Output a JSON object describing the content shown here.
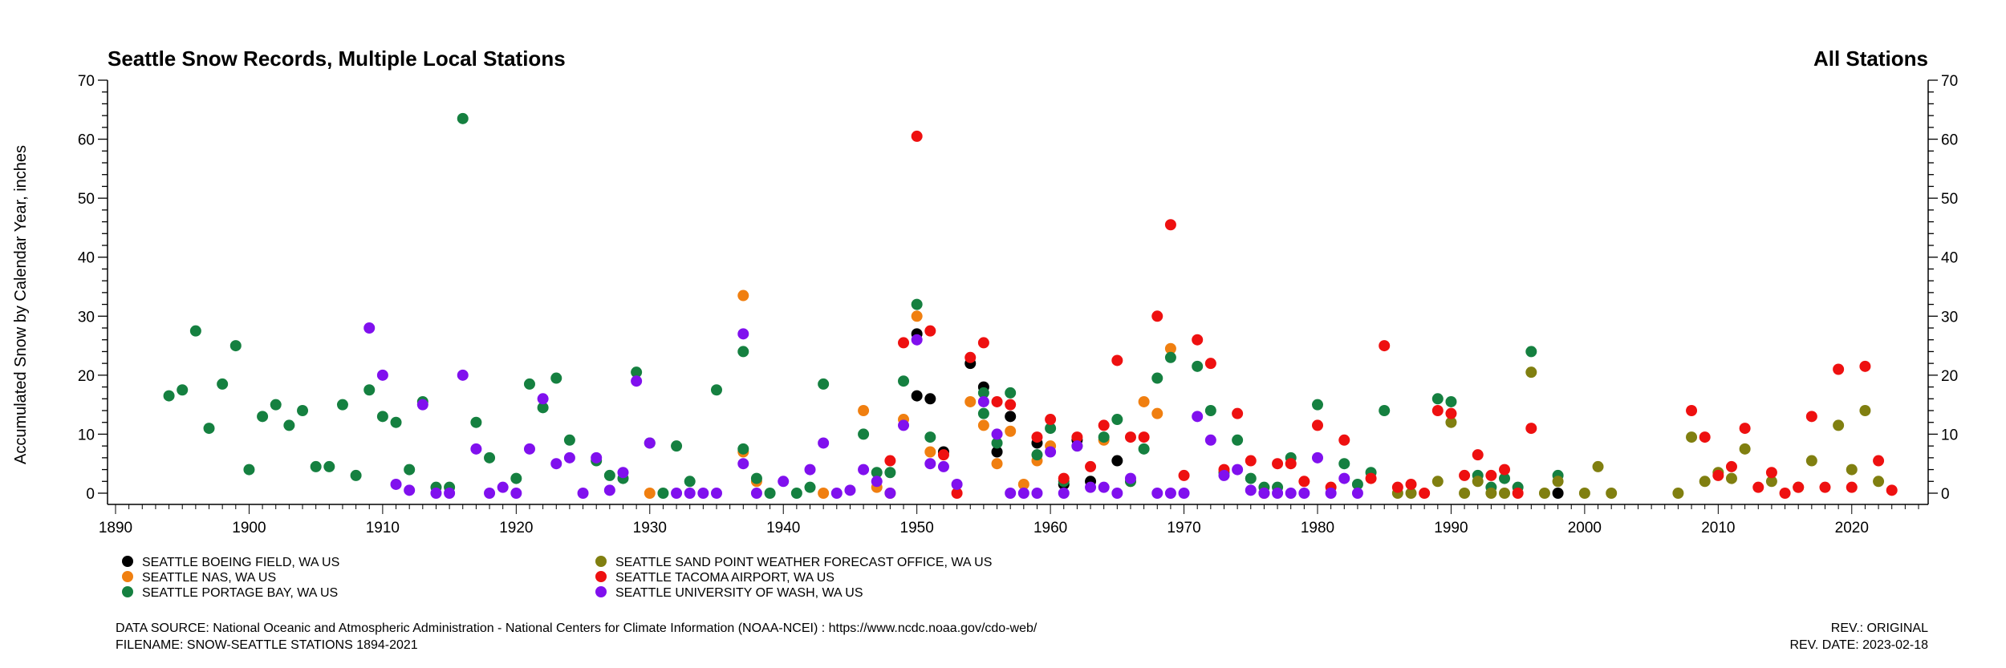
{
  "chart_data": {
    "type": "scatter",
    "title": "Seattle Snow Records, Multiple Local Stations",
    "subtitle": "All Stations",
    "ylabel": "Accumulated Snow by Calendar Year, inches",
    "xlabel": "",
    "xlim": [
      1890,
      2025
    ],
    "ylim": [
      0,
      70
    ],
    "x_ticks": [
      "1890",
      "1900",
      "1910",
      "1920",
      "1930",
      "1940",
      "1950",
      "1960",
      "1970",
      "1980",
      "1990",
      "2000",
      "2010",
      "2020"
    ],
    "y_ticks": [
      "0",
      "10",
      "20",
      "30",
      "40",
      "50",
      "60",
      "70"
    ],
    "grid": false,
    "legend_position": "bottom-left",
    "series": [
      {
        "name": "SEATTLE BOEING FIELD, WA US",
        "color": "#000000",
        "points": [
          [
            1950,
            27
          ],
          [
            1950,
            16.5
          ],
          [
            1951,
            16
          ],
          [
            1952,
            7
          ],
          [
            1954,
            22
          ],
          [
            1955,
            18
          ],
          [
            1956,
            7
          ],
          [
            1957,
            13
          ],
          [
            1959,
            8.5
          ],
          [
            1961,
            1.5
          ],
          [
            1962,
            9
          ],
          [
            1963,
            2
          ],
          [
            1965,
            5.5
          ],
          [
            1998,
            0
          ]
        ]
      },
      {
        "name": "SEATTLE NAS, WA US",
        "color": "#f07f10",
        "points": [
          [
            1937,
            33.5
          ],
          [
            1938,
            2
          ],
          [
            1943,
            0
          ],
          [
            1946,
            14
          ],
          [
            1947,
            1
          ],
          [
            1948,
            0
          ],
          [
            1949,
            12.5
          ],
          [
            1950,
            30
          ],
          [
            1951,
            7
          ],
          [
            1954,
            15.5
          ],
          [
            1955,
            11.5
          ],
          [
            1956,
            5
          ],
          [
            1957,
            10.5
          ],
          [
            1958,
            1.5
          ],
          [
            1959,
            5.5
          ],
          [
            1960,
            8
          ],
          [
            1964,
            9
          ],
          [
            1966,
            2
          ],
          [
            1967,
            15.5
          ],
          [
            1968,
            13.5
          ],
          [
            1969,
            24.5
          ],
          [
            1930,
            0
          ],
          [
            1937,
            7
          ]
        ]
      },
      {
        "name": "SEATTLE PORTAGE BAY, WA US",
        "color": "#158040",
        "points": [
          [
            1894,
            16.5
          ],
          [
            1895,
            17.5
          ],
          [
            1896,
            27.5
          ],
          [
            1897,
            11
          ],
          [
            1898,
            18.5
          ],
          [
            1899,
            25
          ],
          [
            1900,
            4
          ],
          [
            1901,
            13
          ],
          [
            1902,
            15
          ],
          [
            1903,
            11.5
          ],
          [
            1904,
            14
          ],
          [
            1905,
            4.5
          ],
          [
            1906,
            4.5
          ],
          [
            1907,
            15
          ],
          [
            1908,
            3
          ],
          [
            1909,
            17.5
          ],
          [
            1910,
            13
          ],
          [
            1911,
            12
          ],
          [
            1912,
            4
          ],
          [
            1913,
            15.5
          ],
          [
            1914,
            1
          ],
          [
            1915,
            1
          ],
          [
            1916,
            63.5
          ],
          [
            1917,
            12
          ],
          [
            1918,
            6
          ],
          [
            1920,
            2.5
          ],
          [
            1921,
            18.5
          ],
          [
            1922,
            14.5
          ],
          [
            1923,
            19.5
          ],
          [
            1924,
            9
          ],
          [
            1926,
            5.5
          ],
          [
            1927,
            3
          ],
          [
            1928,
            2.5
          ],
          [
            1929,
            20.5
          ],
          [
            1930,
            8.5
          ],
          [
            1931,
            0
          ],
          [
            1932,
            8
          ],
          [
            1933,
            2
          ],
          [
            1935,
            17.5
          ],
          [
            1937,
            7.5
          ],
          [
            1937,
            24
          ],
          [
            1938,
            2.5
          ],
          [
            1939,
            0
          ],
          [
            1941,
            0
          ],
          [
            1942,
            1
          ],
          [
            1943,
            18.5
          ],
          [
            1946,
            10
          ],
          [
            1947,
            3.5
          ],
          [
            1948,
            3.5
          ],
          [
            1949,
            19
          ],
          [
            1950,
            32
          ],
          [
            1951,
            9.5
          ],
          [
            1955,
            13.5
          ],
          [
            1955,
            17
          ],
          [
            1956,
            8.5
          ],
          [
            1957,
            17
          ],
          [
            1959,
            6.5
          ],
          [
            1960,
            11
          ],
          [
            1961,
            2
          ],
          [
            1962,
            8
          ],
          [
            1964,
            9.5
          ],
          [
            1965,
            12.5
          ],
          [
            1966,
            2
          ],
          [
            1967,
            7.5
          ],
          [
            1968,
            19.5
          ],
          [
            1969,
            23
          ],
          [
            1971,
            21.5
          ],
          [
            1972,
            14
          ],
          [
            1973,
            3.5
          ],
          [
            1974,
            9
          ],
          [
            1975,
            2.5
          ],
          [
            1976,
            1
          ],
          [
            1977,
            1
          ],
          [
            1978,
            6
          ],
          [
            1980,
            15
          ],
          [
            1982,
            5
          ],
          [
            1983,
            1.5
          ],
          [
            1984,
            3.5
          ],
          [
            1985,
            14
          ],
          [
            1989,
            16
          ],
          [
            1990,
            15.5
          ],
          [
            1992,
            3
          ],
          [
            1993,
            1
          ],
          [
            1994,
            2.5
          ],
          [
            1995,
            1
          ],
          [
            1996,
            24
          ],
          [
            1998,
            3
          ]
        ]
      },
      {
        "name": "SEATTLE SAND POINT WEATHER FORECAST OFFICE, WA US",
        "color": "#807f10",
        "points": [
          [
            1986,
            0
          ],
          [
            1987,
            0
          ],
          [
            1989,
            2
          ],
          [
            1990,
            12
          ],
          [
            1991,
            0
          ],
          [
            1992,
            2
          ],
          [
            1993,
            0
          ],
          [
            1994,
            0
          ],
          [
            1996,
            20.5
          ],
          [
            1997,
            0
          ],
          [
            1998,
            2
          ],
          [
            2000,
            0
          ],
          [
            2001,
            4.5
          ],
          [
            2002,
            0
          ],
          [
            2007,
            0
          ],
          [
            2008,
            9.5
          ],
          [
            2009,
            2
          ],
          [
            2010,
            3.5
          ],
          [
            2011,
            2.5
          ],
          [
            2012,
            7.5
          ],
          [
            2014,
            2
          ],
          [
            2016,
            1
          ],
          [
            2017,
            5.5
          ],
          [
            2019,
            11.5
          ],
          [
            2020,
            4
          ],
          [
            2021,
            14
          ],
          [
            2022,
            2
          ]
        ]
      },
      {
        "name": "SEATTLE TACOMA AIRPORT, WA US",
        "color": "#ee1010",
        "points": [
          [
            1948,
            5.5
          ],
          [
            1949,
            25.5
          ],
          [
            1950,
            60.5
          ],
          [
            1951,
            27.5
          ],
          [
            1952,
            6.5
          ],
          [
            1953,
            0
          ],
          [
            1954,
            23
          ],
          [
            1955,
            25.5
          ],
          [
            1956,
            15.5
          ],
          [
            1957,
            15
          ],
          [
            1959,
            9.5
          ],
          [
            1960,
            12.5
          ],
          [
            1961,
            2.5
          ],
          [
            1962,
            9.5
          ],
          [
            1963,
            4.5
          ],
          [
            1964,
            11.5
          ],
          [
            1965,
            22.5
          ],
          [
            1966,
            9.5
          ],
          [
            1967,
            9.5
          ],
          [
            1968,
            30
          ],
          [
            1969,
            45.5
          ],
          [
            1970,
            3
          ],
          [
            1971,
            26
          ],
          [
            1972,
            22
          ],
          [
            1973,
            4
          ],
          [
            1974,
            13.5
          ],
          [
            1975,
            5.5
          ],
          [
            1976,
            0
          ],
          [
            1977,
            5
          ],
          [
            1978,
            5
          ],
          [
            1979,
            2
          ],
          [
            1980,
            11.5
          ],
          [
            1981,
            1
          ],
          [
            1982,
            9
          ],
          [
            1984,
            2.5
          ],
          [
            1985,
            25
          ],
          [
            1986,
            1
          ],
          [
            1987,
            1.5
          ],
          [
            1988,
            0
          ],
          [
            1989,
            14
          ],
          [
            1990,
            13.5
          ],
          [
            1991,
            3
          ],
          [
            1992,
            6.5
          ],
          [
            1993,
            3
          ],
          [
            1994,
            4
          ],
          [
            1995,
            0
          ],
          [
            1996,
            11
          ],
          [
            2008,
            14
          ],
          [
            2009,
            9.5
          ],
          [
            2010,
            3
          ],
          [
            2011,
            4.5
          ],
          [
            2012,
            11
          ],
          [
            2013,
            1
          ],
          [
            2014,
            3.5
          ],
          [
            2015,
            0
          ],
          [
            2016,
            1
          ],
          [
            2017,
            13
          ],
          [
            2018,
            1
          ],
          [
            2019,
            21
          ],
          [
            2020,
            1
          ],
          [
            2021,
            21.5
          ],
          [
            2022,
            5.5
          ],
          [
            2023,
            0.5
          ]
        ]
      },
      {
        "name": "SEATTLE UNIVERSITY OF WASH, WA US",
        "color": "#8010ee",
        "points": [
          [
            1909,
            28
          ],
          [
            1910,
            20
          ],
          [
            1911,
            1.5
          ],
          [
            1912,
            0.5
          ],
          [
            1913,
            15
          ],
          [
            1914,
            0
          ],
          [
            1915,
            0
          ],
          [
            1916,
            20
          ],
          [
            1917,
            7.5
          ],
          [
            1918,
            0
          ],
          [
            1919,
            1
          ],
          [
            1920,
            0
          ],
          [
            1921,
            7.5
          ],
          [
            1922,
            16
          ],
          [
            1923,
            5
          ],
          [
            1924,
            6
          ],
          [
            1925,
            0
          ],
          [
            1926,
            6
          ],
          [
            1927,
            0.5
          ],
          [
            1928,
            3.5
          ],
          [
            1929,
            19
          ],
          [
            1930,
            8.5
          ],
          [
            1932,
            0
          ],
          [
            1933,
            0
          ],
          [
            1934,
            0
          ],
          [
            1935,
            0
          ],
          [
            1937,
            5
          ],
          [
            1937,
            27
          ],
          [
            1938,
            0
          ],
          [
            1940,
            2
          ],
          [
            1942,
            4
          ],
          [
            1943,
            8.5
          ],
          [
            1944,
            0
          ],
          [
            1945,
            0.5
          ],
          [
            1946,
            4
          ],
          [
            1947,
            2
          ],
          [
            1948,
            0
          ],
          [
            1949,
            11.5
          ],
          [
            1950,
            26
          ],
          [
            1951,
            5
          ],
          [
            1952,
            4.5
          ],
          [
            1953,
            1.5
          ],
          [
            1955,
            15.5
          ],
          [
            1956,
            10
          ],
          [
            1957,
            0
          ],
          [
            1958,
            0
          ],
          [
            1959,
            0
          ],
          [
            1960,
            7
          ],
          [
            1961,
            0
          ],
          [
            1962,
            8
          ],
          [
            1963,
            1
          ],
          [
            1964,
            1
          ],
          [
            1965,
            0
          ],
          [
            1966,
            2.5
          ],
          [
            1968,
            0
          ],
          [
            1969,
            0
          ],
          [
            1970,
            0
          ],
          [
            1971,
            13
          ],
          [
            1972,
            9
          ],
          [
            1973,
            3
          ],
          [
            1974,
            4
          ],
          [
            1975,
            0.5
          ],
          [
            1976,
            0
          ],
          [
            1977,
            0
          ],
          [
            1978,
            0
          ],
          [
            1979,
            0
          ],
          [
            1980,
            6
          ],
          [
            1981,
            0
          ],
          [
            1982,
            2.5
          ],
          [
            1983,
            0
          ]
        ]
      }
    ]
  },
  "footer": {
    "source": "DATA SOURCE: National Oceanic and Atmospheric Administration - National Centers for Climate Information (NOAA-NCEI) : https://www.ncdc.noaa.gov/cdo-web/",
    "filename": "FILENAME: SNOW-SEATTLE STATIONS 1894-2021",
    "rev": "REV.: ORIGINAL",
    "rev_date": "REV. DATE: 2023-02-18"
  }
}
